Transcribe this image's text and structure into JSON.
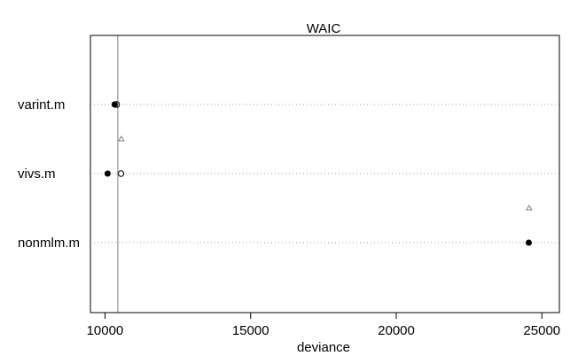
{
  "chart_data": {
    "type": "scatter",
    "title": "WAIC",
    "xlabel": "deviance",
    "ylabel": "",
    "xlim": [
      9500,
      25600
    ],
    "x_ticks": [
      10000,
      15000,
      20000,
      25000
    ],
    "x_tick_labels": [
      "10000",
      "15000",
      "20000",
      "25000"
    ],
    "categories": [
      "varint.m",
      "vivs.m",
      "nonmlm.m"
    ],
    "reference_line_x": 10440,
    "series": [
      {
        "marker": "filled-circle",
        "values": [
          10330,
          10090,
          24550
        ]
      },
      {
        "marker": "open-circle",
        "values": [
          10400,
          10550,
          null
        ]
      },
      {
        "marker": "triangle",
        "values": [
          null,
          10560,
          24560
        ]
      }
    ],
    "grid": "horizontal dotted lines at each category",
    "colors": {
      "points": "#000000",
      "reference_line": "#7f7f7f",
      "grid": "#9a9a9a",
      "triangle": "#7f7f7f"
    }
  }
}
